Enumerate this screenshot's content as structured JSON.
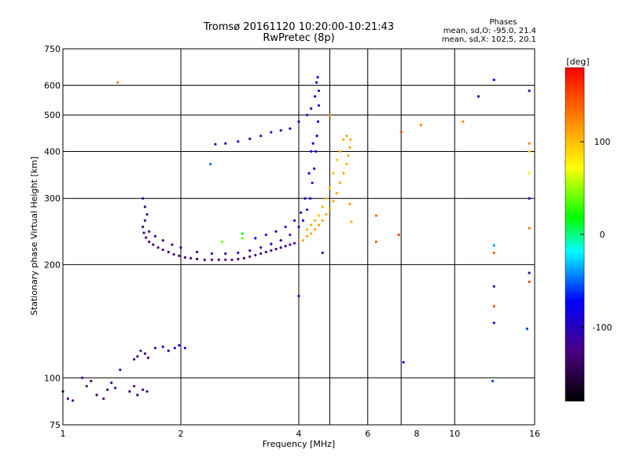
{
  "chart_data": {
    "type": "scatter",
    "title": "Tromsø 20161120 10:20:00-10:21:43",
    "subtitle": "RwPretec (8p)",
    "xlabel": "Frequency [MHz]",
    "ylabel": "Stationary phase Virtual Height [km]",
    "x_scale": "log",
    "y_scale": "log",
    "xlim": [
      1,
      16
    ],
    "ylim": [
      75,
      750
    ],
    "x_ticks": [
      1,
      2,
      4,
      6,
      8,
      10,
      16
    ],
    "y_ticks": [
      75,
      100,
      200,
      300,
      400,
      500,
      600,
      750
    ],
    "x_tick_labels": [
      "1",
      "2",
      "4",
      "6",
      "8",
      "10",
      "16"
    ],
    "y_tick_labels": [
      "75",
      "100",
      "200",
      "300",
      "400",
      "500",
      "600",
      "750"
    ],
    "grid_x": [
      2,
      4,
      4.8,
      6,
      7.3,
      10
    ],
    "grid_y": [
      100,
      200,
      300,
      400,
      500,
      600
    ],
    "grid": true,
    "stats": {
      "heading": "Phases",
      "line1": "mean, sd,O: -95.0, 21.4",
      "line2": "mean, sd,X: 102.5, 20.1"
    },
    "colorbar": {
      "label": "[deg]",
      "range": [
        -180,
        180
      ],
      "ticks": [
        100,
        0,
        -100
      ],
      "tick_labels": [
        "100",
        "0",
        "-100"
      ]
    },
    "series": [
      {
        "description": "O-mode trace",
        "points": [
          [
            1.0,
            92,
            -130
          ],
          [
            1.03,
            88,
            -130
          ],
          [
            1.06,
            87,
            -130
          ],
          [
            1.12,
            100,
            -120
          ],
          [
            1.15,
            95,
            -130
          ],
          [
            1.18,
            98,
            -130
          ],
          [
            1.22,
            90,
            -130
          ],
          [
            1.27,
            88,
            -130
          ],
          [
            1.3,
            93,
            -130
          ],
          [
            1.33,
            97,
            -130
          ],
          [
            1.36,
            94,
            -130
          ],
          [
            1.4,
            105,
            -120
          ],
          [
            1.48,
            92,
            -130
          ],
          [
            1.52,
            95,
            -130
          ],
          [
            1.55,
            90,
            -130
          ],
          [
            1.6,
            93,
            -130
          ],
          [
            1.64,
            92,
            -130
          ],
          [
            1.52,
            112,
            -130
          ],
          [
            1.55,
            114,
            -130
          ],
          [
            1.58,
            118,
            -130
          ],
          [
            1.62,
            116,
            -130
          ],
          [
            1.65,
            113,
            -130
          ],
          [
            1.72,
            120,
            -90
          ],
          [
            1.8,
            121,
            -90
          ],
          [
            1.86,
            118,
            -90
          ],
          [
            1.93,
            120,
            -80
          ],
          [
            1.98,
            122,
            -80
          ],
          [
            2.05,
            120,
            -80
          ],
          [
            1.6,
            300,
            -130
          ],
          [
            1.62,
            285,
            -130
          ],
          [
            1.64,
            272,
            -130
          ],
          [
            1.62,
            262,
            -130
          ],
          [
            1.6,
            252,
            -130
          ],
          [
            1.61,
            243,
            -130
          ],
          [
            1.63,
            236,
            -130
          ],
          [
            1.66,
            230,
            -130
          ],
          [
            1.7,
            226,
            -130
          ],
          [
            1.75,
            222,
            -130
          ],
          [
            1.8,
            219,
            -130
          ],
          [
            1.86,
            216,
            -130
          ],
          [
            1.92,
            213,
            -130
          ],
          [
            1.98,
            211,
            -130
          ],
          [
            2.05,
            209,
            -130
          ],
          [
            2.12,
            208,
            -130
          ],
          [
            2.2,
            207,
            -130
          ],
          [
            2.3,
            206,
            -130
          ],
          [
            2.4,
            206,
            -130
          ],
          [
            2.5,
            206,
            -130
          ],
          [
            2.6,
            206,
            -130
          ],
          [
            2.7,
            206,
            -130
          ],
          [
            2.8,
            207,
            -130
          ],
          [
            2.9,
            208,
            -130
          ],
          [
            3.0,
            210,
            -130
          ],
          [
            3.1,
            212,
            -130
          ],
          [
            3.2,
            214,
            -130
          ],
          [
            3.3,
            216,
            -130
          ],
          [
            3.4,
            218,
            -130
          ],
          [
            3.5,
            220,
            -130
          ],
          [
            3.6,
            222,
            -130
          ],
          [
            3.7,
            224,
            -120
          ],
          [
            3.8,
            226,
            -120
          ],
          [
            3.9,
            228,
            -120
          ],
          [
            1.66,
            245,
            -120
          ],
          [
            1.72,
            238,
            -120
          ],
          [
            1.8,
            232,
            -120
          ],
          [
            1.9,
            226,
            -120
          ],
          [
            2.0,
            222,
            -120
          ],
          [
            2.2,
            216,
            -110
          ],
          [
            2.4,
            214,
            -110
          ],
          [
            2.6,
            214,
            -110
          ],
          [
            2.8,
            215,
            -110
          ],
          [
            3.0,
            218,
            -110
          ],
          [
            3.2,
            222,
            -110
          ],
          [
            3.4,
            227,
            -110
          ],
          [
            3.6,
            232,
            -110
          ],
          [
            3.8,
            240,
            -110
          ],
          [
            4.0,
            252,
            -100
          ],
          [
            4.1,
            262,
            -100
          ],
          [
            4.2,
            280,
            -100
          ],
          [
            4.28,
            300,
            -90
          ],
          [
            4.33,
            330,
            -90
          ],
          [
            4.38,
            360,
            -90
          ],
          [
            4.42,
            400,
            -90
          ],
          [
            4.45,
            440,
            -90
          ],
          [
            4.48,
            480,
            -90
          ],
          [
            4.5,
            530,
            -90
          ],
          [
            4.5,
            580,
            -90
          ],
          [
            4.47,
            630,
            -90
          ],
          [
            4.44,
            610,
            -90
          ],
          [
            4.4,
            560,
            -90
          ],
          [
            4.3,
            520,
            -100
          ],
          [
            4.2,
            500,
            -100
          ],
          [
            4.0,
            480,
            -100
          ],
          [
            3.8,
            460,
            -110
          ],
          [
            3.6,
            455,
            -110
          ],
          [
            3.4,
            450,
            -110
          ],
          [
            3.2,
            440,
            -110
          ],
          [
            3.0,
            432,
            -110
          ],
          [
            2.8,
            425,
            -110
          ],
          [
            2.6,
            420,
            -110
          ],
          [
            2.45,
            418,
            -110
          ],
          [
            3.1,
            235,
            -90
          ],
          [
            3.3,
            240,
            -90
          ],
          [
            3.5,
            245,
            -90
          ],
          [
            3.7,
            252,
            -90
          ],
          [
            3.9,
            262,
            -90
          ],
          [
            4.05,
            275,
            -90
          ],
          [
            4.15,
            300,
            -90
          ],
          [
            4.25,
            350,
            -80
          ],
          [
            4.3,
            400,
            -80
          ],
          [
            4.35,
            420,
            -80
          ]
        ]
      },
      {
        "description": "X-mode trace",
        "points": [
          [
            4.1,
            232,
            110
          ],
          [
            4.2,
            238,
            110
          ],
          [
            4.3,
            242,
            110
          ],
          [
            4.4,
            248,
            110
          ],
          [
            4.5,
            255,
            110
          ],
          [
            4.6,
            262,
            110
          ],
          [
            4.7,
            272,
            110
          ],
          [
            4.8,
            282,
            110
          ],
          [
            4.9,
            295,
            110
          ],
          [
            5.0,
            310,
            110
          ],
          [
            5.1,
            330,
            110
          ],
          [
            5.2,
            350,
            110
          ],
          [
            5.3,
            370,
            110
          ],
          [
            5.35,
            390,
            110
          ],
          [
            5.4,
            410,
            110
          ],
          [
            5.42,
            430,
            110
          ],
          [
            5.3,
            440,
            110
          ],
          [
            5.2,
            430,
            110
          ],
          [
            5.1,
            400,
            110
          ],
          [
            5.0,
            380,
            100
          ],
          [
            4.9,
            350,
            100
          ],
          [
            4.8,
            320,
            100
          ],
          [
            4.7,
            300,
            100
          ],
          [
            4.6,
            285,
            100
          ],
          [
            4.5,
            270,
            100
          ],
          [
            4.4,
            262,
            100
          ],
          [
            4.3,
            255,
            100
          ],
          [
            4.2,
            248,
            100
          ],
          [
            5.45,
            260,
            110
          ],
          [
            5.4,
            290,
            110
          ]
        ]
      },
      {
        "description": "scattered points",
        "points": [
          [
            1.38,
            610,
            130
          ],
          [
            2.38,
            370,
            -50
          ],
          [
            2.87,
            242,
            20
          ],
          [
            2.87,
            235,
            40
          ],
          [
            2.55,
            230,
            40
          ],
          [
            4.0,
            165,
            -70
          ],
          [
            4.6,
            215,
            -110
          ],
          [
            4.8,
            500,
            130
          ],
          [
            6.3,
            270,
            140
          ],
          [
            6.3,
            230,
            140
          ],
          [
            7.2,
            240,
            160
          ],
          [
            7.4,
            110,
            -70
          ],
          [
            7.3,
            450,
            150
          ],
          [
            8.2,
            470,
            130
          ],
          [
            10.5,
            480,
            120
          ],
          [
            11.5,
            560,
            -110
          ],
          [
            12.6,
            620,
            -70
          ],
          [
            12.6,
            175,
            -130
          ],
          [
            12.6,
            155,
            150
          ],
          [
            12.6,
            140,
            -100
          ],
          [
            12.5,
            98,
            -60
          ],
          [
            12.6,
            225,
            -40
          ],
          [
            12.6,
            215,
            140
          ],
          [
            15.5,
            580,
            -100
          ],
          [
            15.5,
            420,
            120
          ],
          [
            15.5,
            350,
            80
          ],
          [
            15.5,
            300,
            -100
          ],
          [
            15.5,
            250,
            130
          ],
          [
            15.5,
            190,
            -110
          ],
          [
            15.5,
            180,
            150
          ],
          [
            15.3,
            135,
            -60
          ],
          [
            15.5,
            400,
            90
          ]
        ]
      }
    ]
  }
}
